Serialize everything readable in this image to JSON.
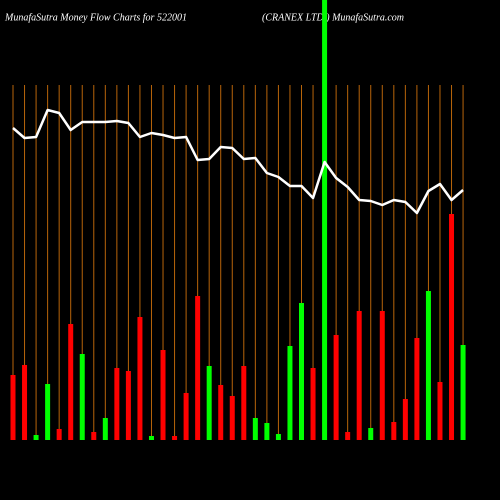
{
  "chart_data": {
    "type": "bar",
    "title": "MunafaSutra  Money Flow  Charts for 522001",
    "subtitle": "(CRANEX  LTD.) MunafaSutra.com",
    "categories": [
      null,
      null,
      null,
      null,
      null,
      null,
      null,
      null,
      null,
      null,
      null,
      null,
      null,
      null,
      null,
      null,
      null,
      null,
      null,
      null,
      null,
      null,
      null,
      null,
      null,
      null,
      null,
      null,
      null,
      null,
      null,
      null,
      null,
      null,
      null,
      null,
      null,
      null,
      null,
      null
    ],
    "values": [
      65,
      75,
      5,
      56,
      11,
      116,
      86,
      8,
      22,
      72,
      69,
      123,
      4,
      90,
      4,
      47,
      144,
      74,
      55,
      44,
      74,
      22,
      17,
      6,
      94,
      137,
      72,
      440,
      105,
      8,
      129,
      12,
      129,
      18,
      41,
      102,
      149,
      58,
      226,
      95
    ],
    "bar_colors": [
      "#ff0000",
      "#ff0000",
      "#00ff00",
      "#00ff00",
      "#ff0000",
      "#ff0000",
      "#00ff00",
      "#ff0000",
      "#00ff00",
      "#ff0000",
      "#ff0000",
      "#ff0000",
      "#00ff00",
      "#ff0000",
      "#ff0000",
      "#ff0000",
      "#ff0000",
      "#00ff00",
      "#ff0000",
      "#ff0000",
      "#ff0000",
      "#00ff00",
      "#00ff00",
      "#00ff00",
      "#00ff00",
      "#00ff00",
      "#ff0000",
      "#00ff00",
      "#ff0000",
      "#ff0000",
      "#ff0000",
      "#00ff00",
      "#ff0000",
      "#ff0000",
      "#ff0000",
      "#ff0000",
      "#00ff00",
      "#ff0000",
      "#ff0000",
      "#00ff00"
    ],
    "line": {
      "color": "#ffffff",
      "values": [
        312,
        302,
        303,
        330,
        327,
        310,
        318,
        318,
        318,
        319,
        317,
        303,
        307,
        305,
        302,
        303,
        280,
        281,
        293,
        292,
        281,
        282,
        267,
        263,
        254,
        254,
        242,
        278,
        262,
        253,
        240,
        239,
        235,
        240,
        238,
        227,
        249,
        256,
        240,
        250
      ]
    },
    "column_line_color": "#b8650a",
    "ylim": [
      0,
      440
    ]
  }
}
